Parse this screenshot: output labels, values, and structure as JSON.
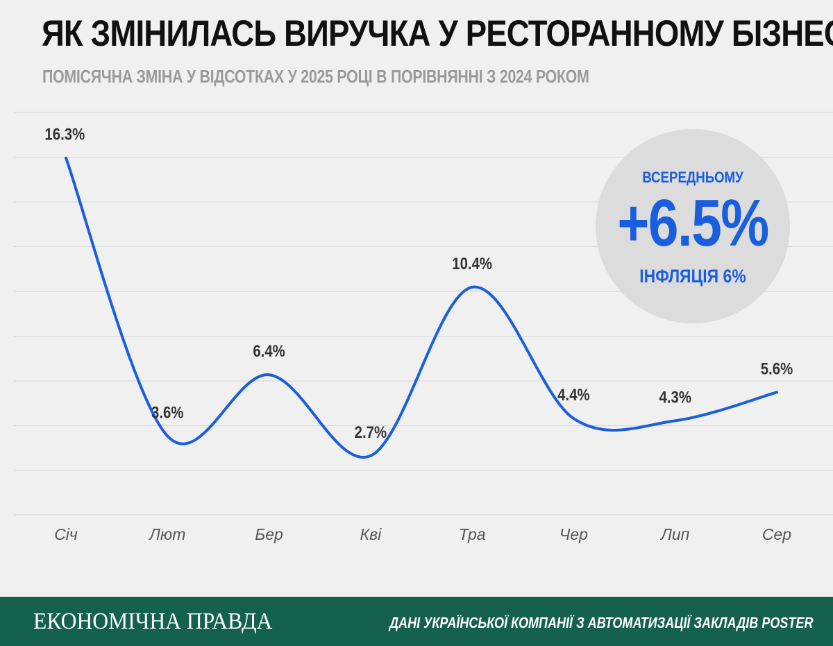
{
  "header": {
    "title": "ЯК ЗМІНИЛАСЬ ВИРУЧКА У РЕСТОРАННОМУ БІЗНЕСІ",
    "subtitle": "ПОМІСЯЧНА ЗМІНА У ВІДСОТКАХ У 2025 РОЦІ В ПОРІВНЯННІ З 2024 РОКОМ"
  },
  "average": {
    "label": "ВСЕРЕДНЬОМУ",
    "value": "+6.5%",
    "note": "ІНФЛЯЦІЯ 6%"
  },
  "footer": {
    "brand": "ЕКОНОМІЧНА ПРАВДА",
    "source": "ДАНІ УКРАЇНСЬКОЇ КОМПАНІЇ З АВТОМАТИЗАЦІЇ ЗАКЛАДІВ POSTER"
  },
  "colors": {
    "line": "#1a5ee0",
    "grid": "#d6d6d6",
    "background": "#f0f0f0",
    "footer": "#14624e"
  },
  "chart_data": {
    "type": "line",
    "title": "ЯК ЗМІНИЛАСЬ ВИРУЧКА У РЕСТОРАННОМУ БІЗНЕСІ",
    "subtitle": "ПОМІСЯЧНА ЗМІНА У ВІДСОТКАХ У 2025 РОЦІ В ПОРІВНЯННІ З 2024 РОКОМ",
    "xlabel": "",
    "ylabel": "",
    "categories": [
      "Січ",
      "Лют",
      "Бер",
      "Кві",
      "Тра",
      "Чер",
      "Лип",
      "Сер"
    ],
    "values": [
      16.3,
      3.6,
      6.4,
      2.7,
      10.4,
      4.4,
      4.3,
      5.6
    ],
    "data_labels": [
      "16.3%",
      "3.6%",
      "6.4%",
      "2.7%",
      "10.4%",
      "4.4%",
      "4.3%",
      "5.6%"
    ],
    "ylim": [
      0,
      18
    ],
    "grid": true,
    "y_tick_labels_shown": false,
    "smooth": true
  }
}
